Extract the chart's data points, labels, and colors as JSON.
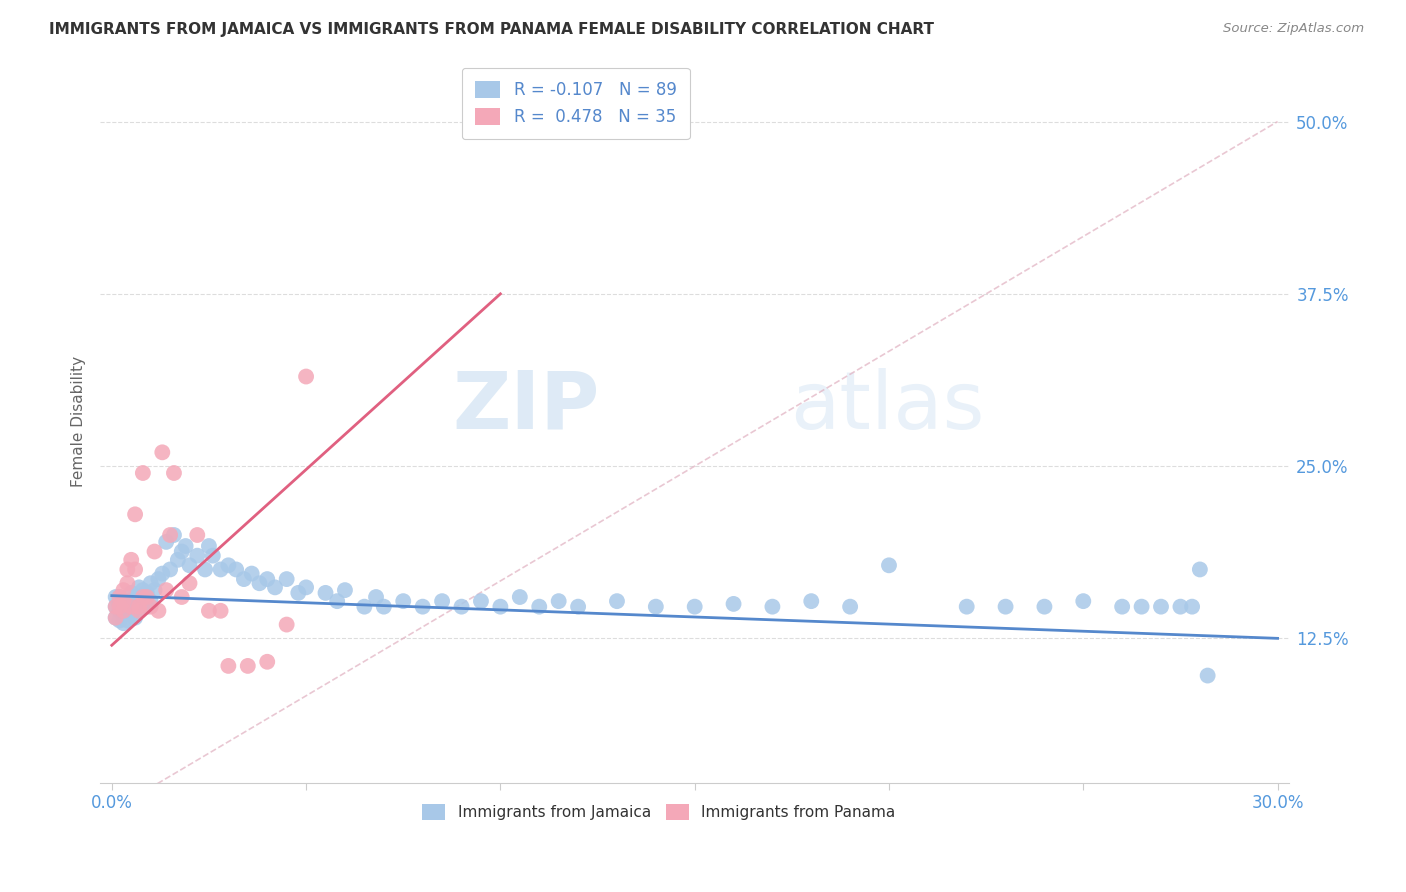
{
  "title": "IMMIGRANTS FROM JAMAICA VS IMMIGRANTS FROM PANAMA FEMALE DISABILITY CORRELATION CHART",
  "source": "Source: ZipAtlas.com",
  "ylabel": "Female Disability",
  "ytick_vals": [
    0.125,
    0.25,
    0.375,
    0.5
  ],
  "xlim": [
    0.0,
    0.3
  ],
  "ylim": [
    0.02,
    0.545
  ],
  "legend_r_jamaica": "-0.107",
  "legend_n_jamaica": "89",
  "legend_r_panama": "0.478",
  "legend_n_panama": "35",
  "color_jamaica": "#a8c8e8",
  "color_panama": "#f4a8b8",
  "trendline_jamaica_color": "#5588cc",
  "trendline_panama_color": "#e06080",
  "trendline_diagonal_color": "#cccccc",
  "watermark_zip": "ZIP",
  "watermark_atlas": "atlas",
  "jamaica_x": [
    0.001,
    0.001,
    0.001,
    0.002,
    0.002,
    0.002,
    0.002,
    0.003,
    0.003,
    0.003,
    0.003,
    0.004,
    0.004,
    0.004,
    0.005,
    0.005,
    0.005,
    0.006,
    0.006,
    0.006,
    0.007,
    0.007,
    0.007,
    0.008,
    0.008,
    0.009,
    0.009,
    0.01,
    0.01,
    0.011,
    0.012,
    0.013,
    0.014,
    0.015,
    0.016,
    0.017,
    0.018,
    0.019,
    0.02,
    0.022,
    0.024,
    0.025,
    0.026,
    0.028,
    0.03,
    0.032,
    0.034,
    0.036,
    0.038,
    0.04,
    0.042,
    0.045,
    0.048,
    0.05,
    0.055,
    0.058,
    0.06,
    0.065,
    0.068,
    0.07,
    0.075,
    0.08,
    0.085,
    0.09,
    0.095,
    0.1,
    0.105,
    0.11,
    0.115,
    0.12,
    0.13,
    0.14,
    0.15,
    0.16,
    0.17,
    0.18,
    0.19,
    0.2,
    0.22,
    0.23,
    0.24,
    0.25,
    0.26,
    0.265,
    0.27,
    0.275,
    0.278,
    0.28,
    0.282
  ],
  "jamaica_y": [
    0.155,
    0.148,
    0.14,
    0.155,
    0.15,
    0.145,
    0.138,
    0.152,
    0.148,
    0.142,
    0.136,
    0.152,
    0.145,
    0.138,
    0.158,
    0.15,
    0.142,
    0.155,
    0.148,
    0.14,
    0.162,
    0.155,
    0.145,
    0.16,
    0.15,
    0.158,
    0.148,
    0.165,
    0.152,
    0.16,
    0.168,
    0.172,
    0.195,
    0.175,
    0.2,
    0.182,
    0.188,
    0.192,
    0.178,
    0.185,
    0.175,
    0.192,
    0.185,
    0.175,
    0.178,
    0.175,
    0.168,
    0.172,
    0.165,
    0.168,
    0.162,
    0.168,
    0.158,
    0.162,
    0.158,
    0.152,
    0.16,
    0.148,
    0.155,
    0.148,
    0.152,
    0.148,
    0.152,
    0.148,
    0.152,
    0.148,
    0.155,
    0.148,
    0.152,
    0.148,
    0.152,
    0.148,
    0.148,
    0.15,
    0.148,
    0.152,
    0.148,
    0.178,
    0.148,
    0.148,
    0.148,
    0.152,
    0.148,
    0.148,
    0.148,
    0.148,
    0.148,
    0.175,
    0.098
  ],
  "panama_x": [
    0.001,
    0.001,
    0.002,
    0.002,
    0.003,
    0.003,
    0.003,
    0.004,
    0.004,
    0.005,
    0.005,
    0.006,
    0.006,
    0.007,
    0.007,
    0.008,
    0.008,
    0.009,
    0.01,
    0.011,
    0.012,
    0.013,
    0.014,
    0.015,
    0.016,
    0.018,
    0.02,
    0.022,
    0.025,
    0.028,
    0.03,
    0.035,
    0.04,
    0.045,
    0.05
  ],
  "panama_y": [
    0.148,
    0.14,
    0.155,
    0.148,
    0.145,
    0.152,
    0.16,
    0.165,
    0.175,
    0.182,
    0.148,
    0.175,
    0.215,
    0.145,
    0.148,
    0.155,
    0.245,
    0.155,
    0.148,
    0.188,
    0.145,
    0.26,
    0.16,
    0.2,
    0.245,
    0.155,
    0.165,
    0.2,
    0.145,
    0.145,
    0.105,
    0.105,
    0.108,
    0.135,
    0.315
  ]
}
